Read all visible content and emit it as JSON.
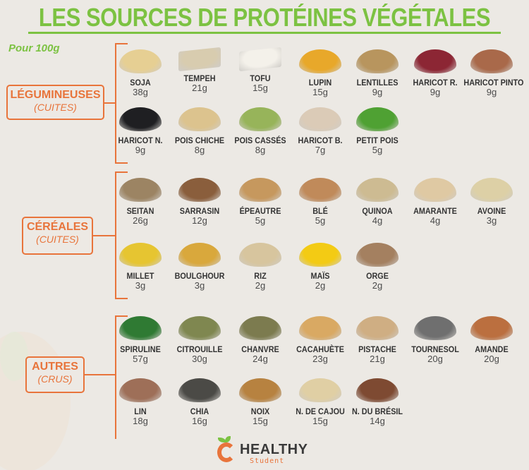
{
  "title": "LES SOURCES DE PROTÉINES VÉGÉTALES",
  "subtitle": "Pour 100g",
  "colors": {
    "title_green": "#7cc242",
    "accent_orange": "#e8743b",
    "background": "#ece9e4",
    "text_dark": "#333333"
  },
  "categories": [
    {
      "name": "LÉGUMINEUSES",
      "qualifier": "(CUITES)",
      "items": [
        {
          "name": "SOJA",
          "protein": "38g",
          "color": "#e6cf93"
        },
        {
          "name": "TEMPEH",
          "protein": "21g",
          "color": "#d8ccaf"
        },
        {
          "name": "TOFU",
          "protein": "15g",
          "color": "#f4f1ea"
        },
        {
          "name": "LUPIN",
          "protein": "15g",
          "color": "#e8a82a"
        },
        {
          "name": "LENTILLES",
          "protein": "9g",
          "color": "#b8955e"
        },
        {
          "name": "HARICOT R.",
          "protein": "9g",
          "color": "#8c2634"
        },
        {
          "name": "HARICOT PINTO",
          "protein": "9g",
          "color": "#a9694a"
        },
        {
          "name": "HARICOT N.",
          "protein": "9g",
          "color": "#1f1f22"
        },
        {
          "name": "POIS CHICHE",
          "protein": "8g",
          "color": "#dcc38e"
        },
        {
          "name": "POIS CASSÉS",
          "protein": "8g",
          "color": "#97b45a"
        },
        {
          "name": "HARICOT B.",
          "protein": "7g",
          "color": "#dbcbb7"
        },
        {
          "name": "PETIT POIS",
          "protein": "5g",
          "color": "#4fa133"
        }
      ]
    },
    {
      "name": "CÉRÉALES",
      "qualifier": "(CUITES)",
      "items": [
        {
          "name": "SEITAN",
          "protein": "26g",
          "color": "#9c8463"
        },
        {
          "name": "SARRASIN",
          "protein": "12g",
          "color": "#8a5e3c"
        },
        {
          "name": "ÉPEAUTRE",
          "protein": "5g",
          "color": "#c6985e"
        },
        {
          "name": "BLÉ",
          "protein": "5g",
          "color": "#c08a5a"
        },
        {
          "name": "QUINOA",
          "protein": "4g",
          "color": "#cdbb92"
        },
        {
          "name": "AMARANTE",
          "protein": "4g",
          "color": "#dfc9a3"
        },
        {
          "name": "AVOINE",
          "protein": "3g",
          "color": "#ddd0a6"
        },
        {
          "name": "MILLET",
          "protein": "3g",
          "color": "#e6c531"
        },
        {
          "name": "BOULGHOUR",
          "protein": "3g",
          "color": "#d9a83c"
        },
        {
          "name": "RIZ",
          "protein": "2g",
          "color": "#d7c59e"
        },
        {
          "name": "MAÏS",
          "protein": "2g",
          "color": "#f3cb14"
        },
        {
          "name": "ORGE",
          "protein": "2g",
          "color": "#a48060"
        }
      ]
    },
    {
      "name": "AUTRES",
      "qualifier": "(CRUS)",
      "items": [
        {
          "name": "SPIRULINE",
          "protein": "57g",
          "color": "#2f7a33"
        },
        {
          "name": "CITROUILLE",
          "protein": "30g",
          "color": "#7f8750"
        },
        {
          "name": "CHANVRE",
          "protein": "24g",
          "color": "#7c7b4f"
        },
        {
          "name": "CACAHUÈTE",
          "protein": "23g",
          "color": "#d9a963"
        },
        {
          "name": "PISTACHE",
          "protein": "21g",
          "color": "#cfae83"
        },
        {
          "name": "TOURNESOL",
          "protein": "20g",
          "color": "#6f6f6f"
        },
        {
          "name": "AMANDE",
          "protein": "20g",
          "color": "#bb6f3f"
        },
        {
          "name": "LIN",
          "protein": "18g",
          "color": "#9e6f58"
        },
        {
          "name": "CHIA",
          "protein": "16g",
          "color": "#4b4a46"
        },
        {
          "name": "NOIX",
          "protein": "15g",
          "color": "#b78240"
        },
        {
          "name": "N. DE CAJOU",
          "protein": "15g",
          "color": "#e0cfa4"
        },
        {
          "name": "N. DU BRÉSIL",
          "protein": "14g",
          "color": "#7e4a32"
        }
      ]
    }
  ],
  "logo": {
    "brand": "HEALTHY",
    "sub": "Student",
    "icon": "orange-fruit-icon"
  }
}
